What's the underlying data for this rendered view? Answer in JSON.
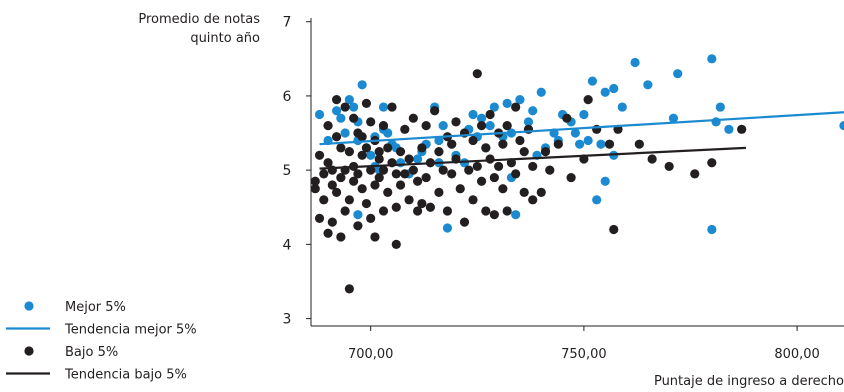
{
  "colors": {
    "mejor": "#1b8ad0",
    "bajo": "#231f20",
    "axis": "#231f20"
  },
  "chart_data": {
    "type": "scatter",
    "title": "",
    "ylabel_lines": [
      "Promedio de notas",
      "quinto  año"
    ],
    "xlabel": "Puntaje de ingreso a derecho",
    "xlim": [
      686,
      811
    ],
    "ylim": [
      2.9,
      7.05
    ],
    "x_ticks": [
      {
        "value": 700,
        "label": "700,00"
      },
      {
        "value": 750,
        "label": "750,00"
      },
      {
        "value": 800,
        "label": "800,00"
      }
    ],
    "y_ticks": [
      {
        "value": 3,
        "label": "3"
      },
      {
        "value": 4,
        "label": "4"
      },
      {
        "value": 5,
        "label": "5"
      },
      {
        "value": 6,
        "label": "6"
      },
      {
        "value": 7,
        "label": "7"
      }
    ],
    "legend": [
      {
        "label": "Mejor 5%",
        "kind": "point",
        "series": "mejor"
      },
      {
        "label": "Tendencia mejor 5%",
        "kind": "line",
        "series": "mejor"
      },
      {
        "label": "Bajo 5%",
        "kind": "point",
        "series": "bajo"
      },
      {
        "label": "Tendencia bajo 5%",
        "kind": "line",
        "series": "bajo"
      }
    ],
    "trend_lines": [
      {
        "series": "mejor",
        "x": [
          688,
          811
        ],
        "y": [
          5.35,
          5.78
        ]
      },
      {
        "series": "bajo",
        "x": [
          688,
          788
        ],
        "y": [
          5.02,
          5.3
        ]
      }
    ],
    "series": [
      {
        "name": "Mejor 5%",
        "key": "mejor",
        "points": [
          [
            688,
            5.75
          ],
          [
            690,
            5.4
          ],
          [
            692,
            5.8
          ],
          [
            693,
            5.7
          ],
          [
            694,
            5.5
          ],
          [
            695,
            5.95
          ],
          [
            696,
            5.85
          ],
          [
            697,
            5.65
          ],
          [
            697,
            5.4
          ],
          [
            698,
            6.15
          ],
          [
            699,
            5.3
          ],
          [
            700,
            5.2
          ],
          [
            701,
            5.45
          ],
          [
            701,
            5.05
          ],
          [
            702,
            5.0
          ],
          [
            703,
            5.85
          ],
          [
            704,
            5.5
          ],
          [
            705,
            5.35
          ],
          [
            706,
            5.3
          ],
          [
            707,
            5.1
          ],
          [
            709,
            4.95
          ],
          [
            711,
            5.15
          ],
          [
            713,
            5.35
          ],
          [
            715,
            5.85
          ],
          [
            716,
            5.4
          ],
          [
            717,
            5.6
          ],
          [
            718,
            4.22
          ],
          [
            719,
            5.35
          ],
          [
            720,
            5.2
          ],
          [
            722,
            5.1
          ],
          [
            723,
            5.55
          ],
          [
            724,
            5.75
          ],
          [
            725,
            5.45
          ],
          [
            726,
            5.7
          ],
          [
            727,
            5.3
          ],
          [
            728,
            5.6
          ],
          [
            729,
            5.85
          ],
          [
            731,
            5.45
          ],
          [
            732,
            5.9
          ],
          [
            733,
            5.5
          ],
          [
            734,
            4.4
          ],
          [
            735,
            5.95
          ],
          [
            737,
            5.65
          ],
          [
            738,
            5.8
          ],
          [
            740,
            6.05
          ],
          [
            741,
            5.3
          ],
          [
            743,
            5.5
          ],
          [
            744,
            5.4
          ],
          [
            745,
            5.75
          ],
          [
            747,
            5.65
          ],
          [
            748,
            5.5
          ],
          [
            749,
            5.35
          ],
          [
            750,
            5.75
          ],
          [
            752,
            6.2
          ],
          [
            753,
            4.6
          ],
          [
            754,
            5.35
          ],
          [
            755,
            6.05
          ],
          [
            755,
            4.85
          ],
          [
            757,
            6.1
          ],
          [
            757,
            5.2
          ],
          [
            759,
            5.85
          ],
          [
            762,
            6.45
          ],
          [
            765,
            6.15
          ],
          [
            771,
            5.7
          ],
          [
            772,
            6.3
          ],
          [
            780,
            6.5
          ],
          [
            780,
            4.2
          ],
          [
            781,
            5.65
          ],
          [
            782,
            5.85
          ],
          [
            784,
            5.55
          ],
          [
            811,
            5.6
          ],
          [
            697,
            4.4
          ],
          [
            703,
            5.55
          ],
          [
            712,
            5.25
          ],
          [
            716,
            5.1
          ],
          [
            733,
            4.9
          ],
          [
            739,
            5.2
          ],
          [
            751,
            5.4
          ]
        ]
      },
      {
        "name": "Bajo 5%",
        "key": "bajo",
        "points": [
          [
            687,
            4.85
          ],
          [
            687,
            4.75
          ],
          [
            688,
            5.2
          ],
          [
            688,
            4.35
          ],
          [
            689,
            4.95
          ],
          [
            689,
            4.6
          ],
          [
            690,
            5.1
          ],
          [
            690,
            4.15
          ],
          [
            690,
            5.6
          ],
          [
            691,
            4.8
          ],
          [
            691,
            5.0
          ],
          [
            691,
            4.3
          ],
          [
            692,
            5.95
          ],
          [
            692,
            5.45
          ],
          [
            692,
            4.7
          ],
          [
            693,
            5.3
          ],
          [
            693,
            4.9
          ],
          [
            693,
            4.1
          ],
          [
            694,
            5.85
          ],
          [
            694,
            5.0
          ],
          [
            694,
            4.45
          ],
          [
            695,
            5.25
          ],
          [
            695,
            4.6
          ],
          [
            695,
            3.4
          ],
          [
            696,
            5.7
          ],
          [
            696,
            5.05
          ],
          [
            696,
            4.85
          ],
          [
            697,
            5.5
          ],
          [
            697,
            4.95
          ],
          [
            697,
            4.25
          ],
          [
            698,
            5.2
          ],
          [
            698,
            4.75
          ],
          [
            699,
            5.9
          ],
          [
            699,
            5.3
          ],
          [
            699,
            4.55
          ],
          [
            700,
            5.65
          ],
          [
            700,
            5.0
          ],
          [
            700,
            4.35
          ],
          [
            701,
            5.4
          ],
          [
            701,
            4.8
          ],
          [
            701,
            4.1
          ],
          [
            702,
            5.15
          ],
          [
            702,
            4.9
          ],
          [
            703,
            5.6
          ],
          [
            703,
            5.0
          ],
          [
            703,
            4.45
          ],
          [
            704,
            5.3
          ],
          [
            704,
            4.7
          ],
          [
            705,
            5.85
          ],
          [
            705,
            5.1
          ],
          [
            706,
            4.5
          ],
          [
            706,
            4.0
          ],
          [
            707,
            5.25
          ],
          [
            707,
            4.8
          ],
          [
            708,
            5.55
          ],
          [
            708,
            4.95
          ],
          [
            709,
            5.15
          ],
          [
            709,
            4.6
          ],
          [
            710,
            5.7
          ],
          [
            710,
            5.0
          ],
          [
            711,
            4.85
          ],
          [
            711,
            4.45
          ],
          [
            712,
            5.3
          ],
          [
            713,
            5.6
          ],
          [
            713,
            4.9
          ],
          [
            714,
            5.1
          ],
          [
            714,
            4.5
          ],
          [
            715,
            5.8
          ],
          [
            716,
            5.25
          ],
          [
            716,
            4.7
          ],
          [
            717,
            5.0
          ],
          [
            718,
            5.45
          ],
          [
            718,
            4.45
          ],
          [
            719,
            4.95
          ],
          [
            720,
            5.65
          ],
          [
            720,
            5.15
          ],
          [
            721,
            4.75
          ],
          [
            722,
            5.5
          ],
          [
            722,
            4.3
          ],
          [
            723,
            5.0
          ],
          [
            724,
            5.4
          ],
          [
            724,
            4.6
          ],
          [
            725,
            6.3
          ],
          [
            725,
            5.05
          ],
          [
            726,
            5.6
          ],
          [
            726,
            4.85
          ],
          [
            727,
            5.3
          ],
          [
            727,
            4.45
          ],
          [
            728,
            5.75
          ],
          [
            728,
            5.15
          ],
          [
            729,
            4.9
          ],
          [
            729,
            4.4
          ],
          [
            730,
            5.5
          ],
          [
            730,
            5.05
          ],
          [
            731,
            5.35
          ],
          [
            731,
            4.75
          ],
          [
            732,
            5.6
          ],
          [
            732,
            4.45
          ],
          [
            733,
            5.1
          ],
          [
            734,
            5.85
          ],
          [
            734,
            4.95
          ],
          [
            735,
            5.4
          ],
          [
            736,
            5.25
          ],
          [
            736,
            4.7
          ],
          [
            737,
            5.55
          ],
          [
            738,
            5.05
          ],
          [
            740,
            4.7
          ],
          [
            741,
            5.25
          ],
          [
            744,
            5.35
          ],
          [
            746,
            5.7
          ],
          [
            747,
            4.9
          ],
          [
            750,
            5.15
          ],
          [
            751,
            5.95
          ],
          [
            753,
            5.55
          ],
          [
            756,
            5.35
          ],
          [
            757,
            4.2
          ],
          [
            758,
            5.55
          ],
          [
            763,
            5.35
          ],
          [
            766,
            5.15
          ],
          [
            770,
            5.05
          ],
          [
            776,
            4.95
          ],
          [
            780,
            5.1
          ],
          [
            787,
            5.55
          ],
          [
            698,
            5.45
          ],
          [
            702,
            5.25
          ],
          [
            706,
            4.95
          ],
          [
            712,
            4.55
          ],
          [
            719,
            5.35
          ],
          [
            738,
            4.6
          ],
          [
            742,
            5.0
          ]
        ]
      }
    ]
  }
}
